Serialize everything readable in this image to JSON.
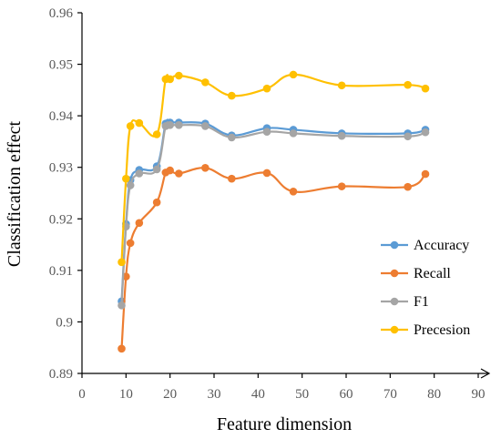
{
  "chart_data": {
    "type": "line",
    "xlabel": "Feature dimension",
    "ylabel": "Classification effect",
    "xlim": [
      0,
      90
    ],
    "ylim": [
      0.89,
      0.96
    ],
    "xticks": [
      "0",
      "10",
      "20",
      "30",
      "40",
      "50",
      "60",
      "70",
      "80",
      "90"
    ],
    "yticks": [
      "0.89",
      "0.9",
      "0.91",
      "0.92",
      "0.93",
      "0.94",
      "0.95",
      "0.96"
    ],
    "grid": false,
    "legend_position": "right",
    "series": [
      {
        "name": "Accuracy",
        "color": "#5B9BD5",
        "x": [
          9,
          10,
          11,
          13,
          17,
          19,
          20,
          22,
          28,
          34,
          42,
          48,
          59,
          74,
          78
        ],
        "y": [
          0.904,
          0.919,
          0.9275,
          0.9295,
          0.9302,
          0.9385,
          0.9387,
          0.9387,
          0.9385,
          0.9362,
          0.9376,
          0.9373,
          0.9366,
          0.9366,
          0.9373
        ]
      },
      {
        "name": "Recall",
        "color": "#ED7D31",
        "x": [
          9,
          10,
          11,
          13,
          17,
          19,
          20,
          22,
          28,
          34,
          42,
          48,
          59,
          74,
          78
        ],
        "y": [
          0.8948,
          0.9088,
          0.9153,
          0.9192,
          0.9232,
          0.929,
          0.9294,
          0.9288,
          0.9299,
          0.9278,
          0.9289,
          0.9253,
          0.9263,
          0.9262,
          0.9287
        ]
      },
      {
        "name": "F1",
        "color": "#A5A5A5",
        "x": [
          9,
          10,
          11,
          13,
          17,
          19,
          20,
          22,
          28,
          34,
          42,
          48,
          59,
          74,
          78
        ],
        "y": [
          0.9032,
          0.9185,
          0.9265,
          0.9288,
          0.9296,
          0.938,
          0.9382,
          0.9382,
          0.938,
          0.9358,
          0.9369,
          0.9366,
          0.9361,
          0.936,
          0.9368
        ]
      },
      {
        "name": "Precesion",
        "color": "#FFC000",
        "x": [
          9,
          10,
          11,
          13,
          17,
          19,
          20,
          22,
          28,
          34,
          42,
          48,
          59,
          74,
          78
        ],
        "y": [
          0.9116,
          0.9278,
          0.938,
          0.9386,
          0.9364,
          0.9471,
          0.9471,
          0.9478,
          0.9465,
          0.9439,
          0.9453,
          0.948,
          0.9459,
          0.946,
          0.9453
        ]
      }
    ]
  }
}
